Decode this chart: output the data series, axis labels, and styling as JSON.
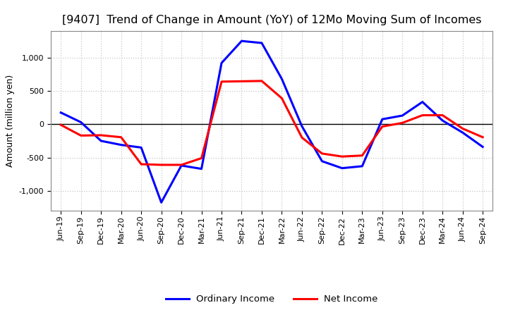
{
  "title": "[9407]  Trend of Change in Amount (YoY) of 12Mo Moving Sum of Incomes",
  "ylabel": "Amount (million yen)",
  "x_labels": [
    "Jun-19",
    "Sep-19",
    "Dec-19",
    "Mar-20",
    "Jun-20",
    "Sep-20",
    "Dec-20",
    "Mar-21",
    "Jun-21",
    "Sep-21",
    "Dec-21",
    "Mar-22",
    "Jun-22",
    "Sep-22",
    "Dec-22",
    "Mar-23",
    "Jun-23",
    "Sep-23",
    "Dec-23",
    "Mar-24",
    "Jun-24",
    "Sep-24"
  ],
  "ordinary_income": [
    175,
    30,
    -250,
    -310,
    -350,
    -1175,
    -620,
    -670,
    920,
    1250,
    1220,
    680,
    -30,
    -555,
    -660,
    -630,
    75,
    130,
    335,
    55,
    -125,
    -340
  ],
  "net_income": [
    -10,
    -170,
    -165,
    -195,
    -600,
    -610,
    -610,
    -510,
    640,
    645,
    650,
    390,
    -200,
    -440,
    -485,
    -470,
    -35,
    20,
    135,
    135,
    -65,
    -195
  ],
  "ordinary_color": "#0000FF",
  "net_color": "#FF0000",
  "ylim": [
    -1300,
    1400
  ],
  "yticks": [
    -1000,
    -500,
    0,
    500,
    1000
  ],
  "background_color": "#FFFFFF",
  "grid_color": "#BBBBBB",
  "title_fontsize": 11.5,
  "label_fontsize": 9,
  "tick_fontsize": 8,
  "legend_fontsize": 9.5,
  "line_width": 2.2
}
